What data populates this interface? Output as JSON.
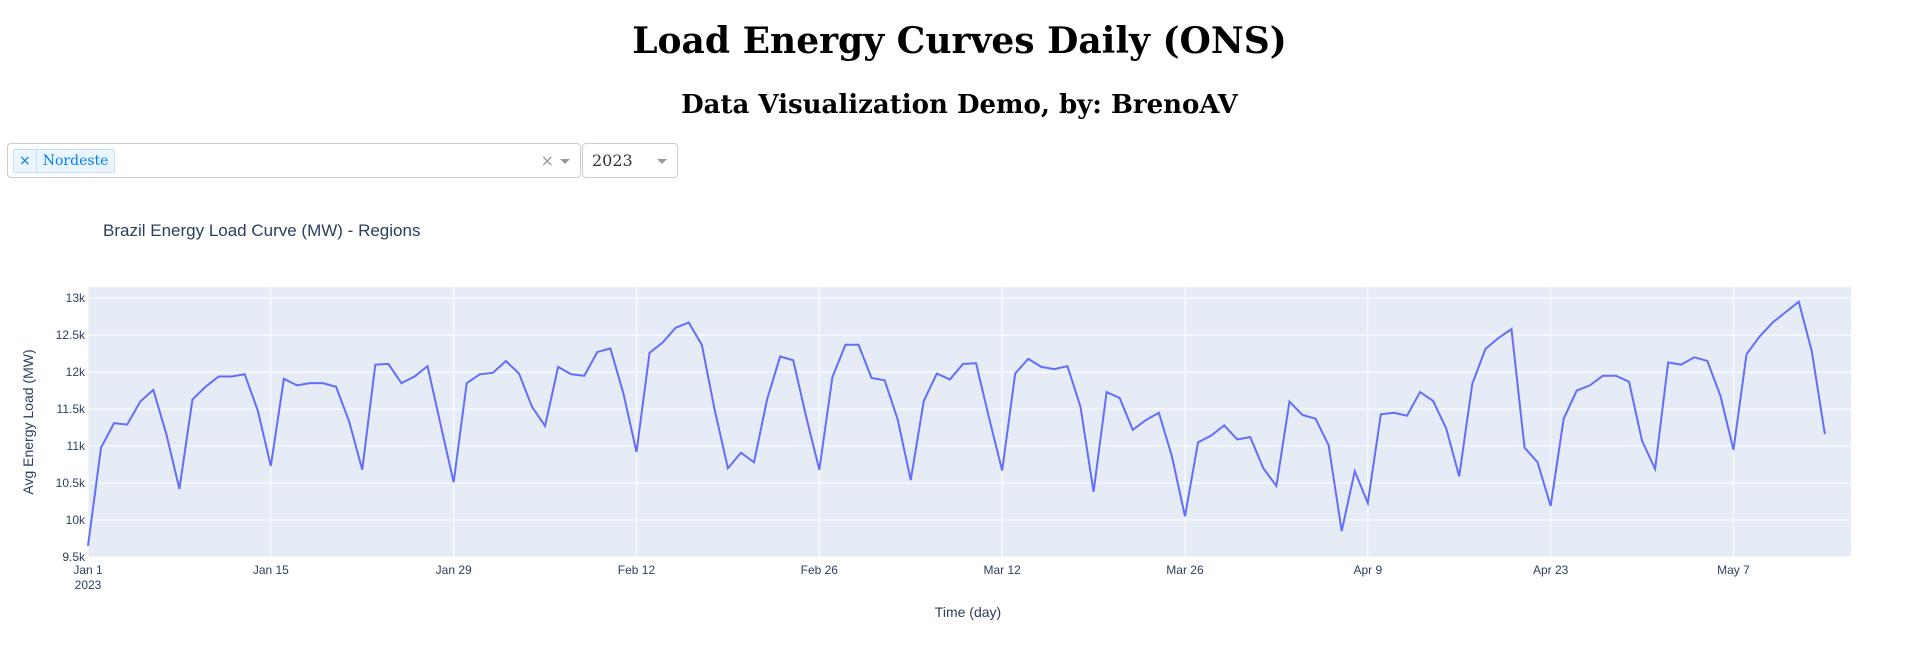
{
  "header": {
    "title": "Load Energy Curves Daily (ONS)",
    "subtitle": "Data Visualization Demo, by: BrenoAV"
  },
  "filters": {
    "region_select": {
      "selected": [
        "Nordeste"
      ],
      "remove_glyph": "×",
      "clear_glyph": "×"
    },
    "year_select": {
      "value": "2023"
    }
  },
  "colors": {
    "line": "#636efa",
    "plot_bg": "#e5ecf6",
    "grid": "#ffffff",
    "text": "#2a3f5f"
  },
  "chart_data": {
    "type": "line",
    "title": "Brazil Energy Load Curve (MW) - Regions",
    "xlabel": "Time (day)",
    "ylabel": "Avg Energy Load (MW)",
    "x_start": "2023-01-01",
    "x_end": "2023-05-16",
    "xlim": [
      "2023-01-01",
      "2023-05-16"
    ],
    "ylim": [
      9500,
      13150
    ],
    "grid": true,
    "x_ticks": [
      {
        "date": "2023-01-01",
        "label": "Jan 1",
        "sublabel": "2023"
      },
      {
        "date": "2023-01-15",
        "label": "Jan 15"
      },
      {
        "date": "2023-01-29",
        "label": "Jan 29"
      },
      {
        "date": "2023-02-12",
        "label": "Feb 12"
      },
      {
        "date": "2023-02-26",
        "label": "Feb 26"
      },
      {
        "date": "2023-03-12",
        "label": "Mar 12"
      },
      {
        "date": "2023-03-26",
        "label": "Mar 26"
      },
      {
        "date": "2023-04-09",
        "label": "Apr 9"
      },
      {
        "date": "2023-04-23",
        "label": "Apr 23"
      },
      {
        "date": "2023-05-07",
        "label": "May 7"
      }
    ],
    "y_ticks": [
      {
        "value": 9500,
        "label": "9.5k"
      },
      {
        "value": 10000,
        "label": "10k"
      },
      {
        "value": 10500,
        "label": "10.5k"
      },
      {
        "value": 11000,
        "label": "11k"
      },
      {
        "value": 11500,
        "label": "11.5k"
      },
      {
        "value": 12000,
        "label": "12k"
      },
      {
        "value": 12500,
        "label": "12.5k"
      },
      {
        "value": 13000,
        "label": "13k"
      }
    ],
    "series": [
      {
        "name": "Nordeste",
        "values": [
          9650,
          10980,
          11310,
          11290,
          11600,
          11760,
          11160,
          10420,
          11630,
          11800,
          11940,
          11940,
          11970,
          11480,
          10730,
          11910,
          11820,
          11850,
          11850,
          11800,
          11330,
          10680,
          12100,
          12110,
          11850,
          11940,
          12080,
          11290,
          10510,
          11850,
          11970,
          11990,
          12150,
          11980,
          11530,
          11270,
          12070,
          11970,
          11950,
          12270,
          12320,
          11710,
          10920,
          12260,
          12400,
          12600,
          12670,
          12370,
          11480,
          10700,
          10910,
          10780,
          11630,
          12210,
          12160,
          11390,
          10680,
          11930,
          12370,
          12370,
          11920,
          11890,
          11360,
          10540,
          11610,
          11980,
          11900,
          12110,
          12120,
          11380,
          10670,
          11980,
          12180,
          12070,
          12040,
          12080,
          11530,
          10380,
          11730,
          11650,
          11220,
          11350,
          11450,
          10860,
          10050,
          11050,
          11140,
          11280,
          11090,
          11120,
          10700,
          10460,
          11600,
          11420,
          11370,
          11010,
          9850,
          10660,
          10230,
          11430,
          11450,
          11410,
          11730,
          11610,
          11240,
          10590,
          11840,
          12310,
          12460,
          12580,
          10980,
          10780,
          10190,
          11370,
          11750,
          11820,
          11950,
          11950,
          11870,
          11070,
          10690,
          12130,
          12100,
          12200,
          12150,
          11680,
          10950,
          12240,
          12480,
          12670,
          12810,
          12950,
          12280,
          11160
        ]
      }
    ]
  }
}
